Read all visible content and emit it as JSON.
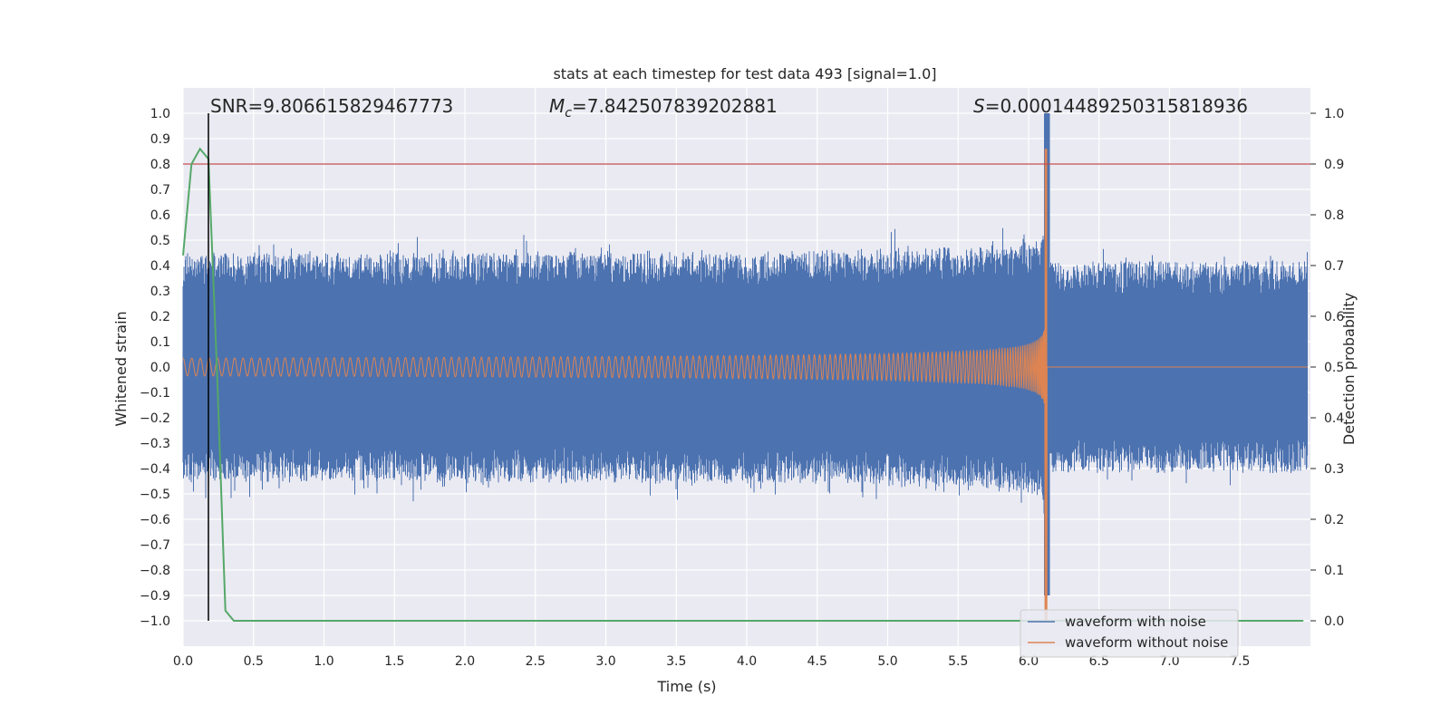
{
  "chart_data": {
    "type": "line",
    "title": "stats at each timestep for test data 493 [signal=1.0]",
    "xlabel": "Time (s)",
    "ylabel": "Whitened strain",
    "ylabel_right": "Detection probability",
    "xlim": [
      0.0,
      8.0
    ],
    "ylim": [
      -1.1,
      1.1
    ],
    "ylim_right": [
      -0.05,
      1.05
    ],
    "x_ticks": [
      "0.0",
      "0.5",
      "1.0",
      "1.5",
      "2.0",
      "2.5",
      "3.0",
      "3.5",
      "4.0",
      "4.5",
      "5.0",
      "5.5",
      "6.0",
      "6.5",
      "7.0",
      "7.5"
    ],
    "y_ticks": [
      "1.0",
      "0.9",
      "0.8",
      "0.7",
      "0.6",
      "0.5",
      "0.4",
      "0.3",
      "0.2",
      "0.1",
      "0.0",
      "−0.1",
      "−0.2",
      "−0.3",
      "−0.4",
      "−0.5",
      "−0.6",
      "−0.7",
      "−0.8",
      "−0.9",
      "−1.0"
    ],
    "y_ticks_right": [
      "1.0",
      "0.9",
      "0.8",
      "0.7",
      "0.6",
      "0.5",
      "0.4",
      "0.3",
      "0.2",
      "0.1",
      "0.0"
    ],
    "grid": true,
    "legend_position": "lower-right",
    "annotations": {
      "snr": "SNR=9.806615829467773",
      "mc_symbol": "M",
      "mc_sub": "c",
      "mc_value": "=7.842507839202881",
      "s_symbol": "S",
      "s_value": "=0.00014489250315818936"
    },
    "threshold_line": {
      "axis": "right",
      "value": 0.9,
      "color": "#c44e52"
    },
    "vertical_marker": {
      "x": 0.18,
      "color": "#000000"
    },
    "merger_time": 6.13,
    "series": [
      {
        "name": "waveform with noise",
        "color": "#4c72b0",
        "axis": "left",
        "noise_envelope": 0.38,
        "peak": 1.0
      },
      {
        "name": "waveform without noise",
        "color": "#dd8452",
        "axis": "left",
        "start_amplitude": 0.035,
        "peak_positive": 0.86,
        "peak_negative": -1.0
      },
      {
        "name": "",
        "color": "#55a868",
        "axis": "right",
        "x": [
          0.0,
          0.06,
          0.12,
          0.18,
          0.24,
          0.3,
          0.36,
          0.42,
          7.95
        ],
        "y": [
          0.72,
          0.9,
          0.93,
          0.91,
          0.5,
          0.02,
          0.0,
          0.0,
          0.0
        ]
      }
    ]
  },
  "colors": {
    "plot_background": "#eaeaf2",
    "grid": "#ffffff",
    "page_background": "#ffffff"
  }
}
